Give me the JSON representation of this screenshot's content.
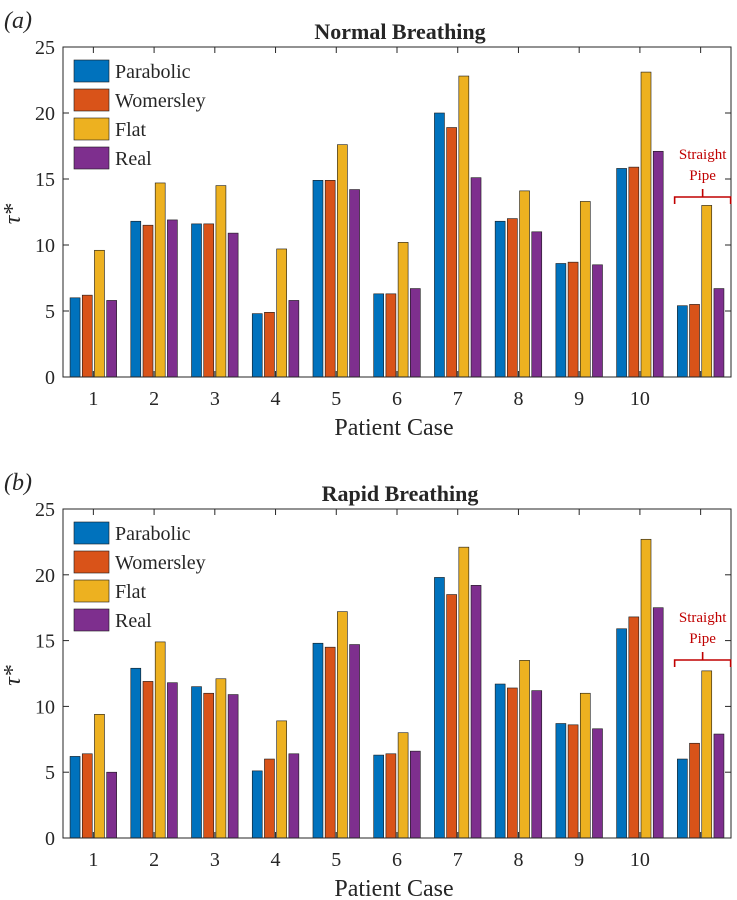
{
  "colors": {
    "parabolic": "#0072BD",
    "womersley": "#D95319",
    "flat": "#EDB120",
    "real": "#7E2F8E",
    "annotation": "#C00000",
    "axis": "#262626"
  },
  "chart_data": [
    {
      "type": "bar",
      "panel_label": "(a)",
      "title": "Normal Breathing",
      "xlabel": "Patient Case",
      "ylabel": "τ*",
      "ylim": [
        0,
        25
      ],
      "yticks": [
        "0",
        "5",
        "10",
        "15",
        "20",
        "25"
      ],
      "categories": [
        "1",
        "2",
        "3",
        "4",
        "5",
        "6",
        "7",
        "8",
        "9",
        "10",
        ""
      ],
      "legend_position": "top-left",
      "annotation": {
        "line1": "Straight",
        "line2": "Pipe",
        "category_index": 10
      },
      "series": [
        {
          "name": "Parabolic",
          "values": [
            6.0,
            11.8,
            11.6,
            4.8,
            14.9,
            6.3,
            20.0,
            11.8,
            8.6,
            15.8,
            5.4
          ]
        },
        {
          "name": "Womersley",
          "values": [
            6.2,
            11.5,
            11.6,
            4.9,
            14.9,
            6.3,
            18.9,
            12.0,
            8.7,
            15.9,
            5.5
          ]
        },
        {
          "name": "Flat",
          "values": [
            9.6,
            14.7,
            14.5,
            9.7,
            17.6,
            10.2,
            22.8,
            14.1,
            13.3,
            23.1,
            13.0
          ]
        },
        {
          "name": "Real",
          "values": [
            5.8,
            11.9,
            10.9,
            5.8,
            14.2,
            6.7,
            15.1,
            11.0,
            8.5,
            17.1,
            6.7
          ]
        }
      ]
    },
    {
      "type": "bar",
      "panel_label": "(b)",
      "title": "Rapid Breathing",
      "xlabel": "Patient Case",
      "ylabel": "τ*",
      "ylim": [
        0,
        25
      ],
      "yticks": [
        "0",
        "5",
        "10",
        "15",
        "20",
        "25"
      ],
      "categories": [
        "1",
        "2",
        "3",
        "4",
        "5",
        "6",
        "7",
        "8",
        "9",
        "10",
        ""
      ],
      "legend_position": "top-left",
      "annotation": {
        "line1": "Straight",
        "line2": "Pipe",
        "category_index": 10
      },
      "series": [
        {
          "name": "Parabolic",
          "values": [
            6.2,
            12.9,
            11.5,
            5.1,
            14.8,
            6.3,
            19.8,
            11.7,
            8.7,
            15.9,
            6.0
          ]
        },
        {
          "name": "Womersley",
          "values": [
            6.4,
            11.9,
            11.0,
            6.0,
            14.5,
            6.4,
            18.5,
            11.4,
            8.6,
            16.8,
            7.2
          ]
        },
        {
          "name": "Flat",
          "values": [
            9.4,
            14.9,
            12.1,
            8.9,
            17.2,
            8.0,
            22.1,
            13.5,
            11.0,
            22.7,
            12.7
          ]
        },
        {
          "name": "Real",
          "values": [
            5.0,
            11.8,
            10.9,
            6.4,
            14.7,
            6.6,
            19.2,
            11.2,
            8.3,
            17.5,
            7.9
          ]
        }
      ]
    }
  ]
}
